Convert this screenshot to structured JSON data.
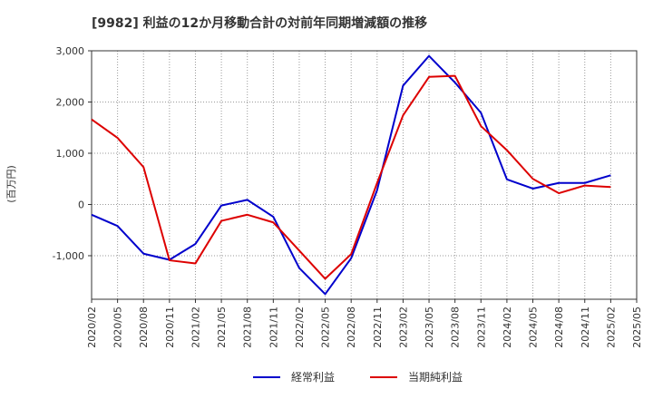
{
  "chart_data": {
    "type": "line",
    "title": "[9982]  利益の12か月移動合計の対前年同期増減額の推移",
    "ylabel": "(百万円)",
    "xlabel": "",
    "ylim": [
      -1850,
      3000
    ],
    "yticks": [
      3000,
      2000,
      1000,
      0,
      -1000
    ],
    "ytick_labels": [
      "3,000",
      "2,000",
      "1,000",
      "0",
      "-1,000"
    ],
    "categories": [
      "2020/02",
      "2020/05",
      "2020/08",
      "2020/11",
      "2021/02",
      "2021/05",
      "2021/08",
      "2021/11",
      "2022/02",
      "2022/05",
      "2022/08",
      "2022/11",
      "2023/02",
      "2023/05",
      "2023/08",
      "2023/11",
      "2024/02",
      "2024/05",
      "2024/08",
      "2024/11",
      "2025/02",
      "2025/05"
    ],
    "series": [
      {
        "name": "経常利益",
        "color": "#0000cc",
        "values": [
          -200,
          -420,
          -960,
          -1080,
          -770,
          -20,
          90,
          -240,
          -1240,
          -1750,
          -1050,
          280,
          2320,
          2900,
          2380,
          1790,
          490,
          310,
          420,
          420,
          570,
          null
        ]
      },
      {
        "name": "当期純利益",
        "color": "#dd0000",
        "values": [
          1660,
          1300,
          730,
          -1090,
          -1150,
          -320,
          -200,
          -350,
          -900,
          -1450,
          -970,
          420,
          1740,
          2490,
          2510,
          1530,
          1060,
          500,
          220,
          370,
          340,
          null
        ]
      }
    ],
    "legend": "bottom-center",
    "grid": true
  }
}
